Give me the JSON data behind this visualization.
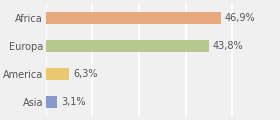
{
  "categories": [
    "Africa",
    "Europa",
    "America",
    "Asia"
  ],
  "values": [
    46.9,
    43.8,
    6.3,
    3.1
  ],
  "labels": [
    "46,9%",
    "43,8%",
    "6,3%",
    "3,1%"
  ],
  "bar_colors": [
    "#e8a97e",
    "#b5c98e",
    "#e8c96e",
    "#8899cc"
  ],
  "background_color": "#f0f0f0",
  "xlim": [
    0,
    62
  ],
  "bar_height": 0.45,
  "label_fontsize": 7,
  "tick_fontsize": 7,
  "grid_color": "#ffffff",
  "grid_ticks": [
    0,
    12.5,
    25,
    37.5,
    50
  ],
  "text_color": "#555555"
}
